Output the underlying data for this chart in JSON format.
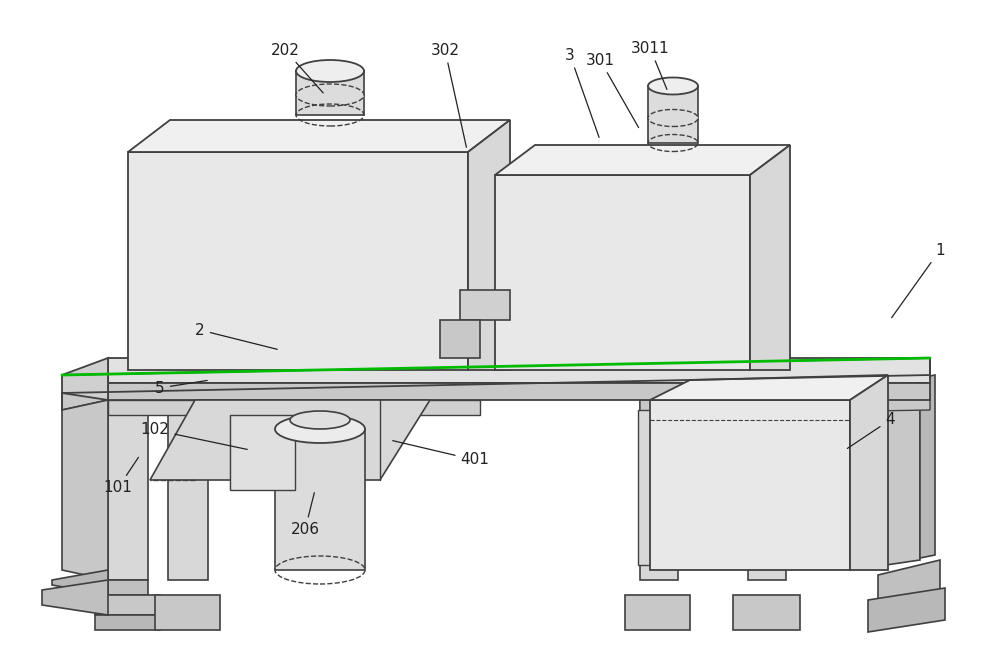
{
  "bg_color": "#ffffff",
  "line_color": "#404040",
  "green_line_color": "#00bb00",
  "fig_width": 10.0,
  "fig_height": 6.64,
  "dpi": 100
}
